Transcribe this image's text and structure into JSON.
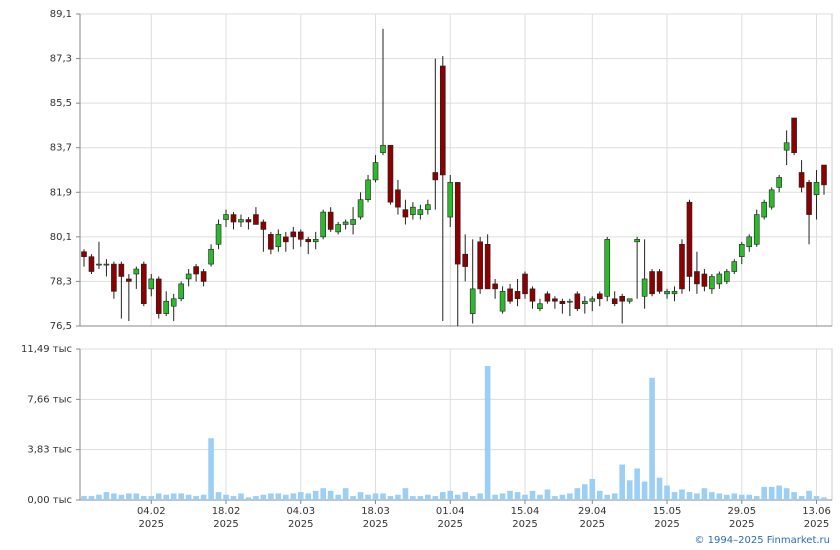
{
  "chart_data": [
    {
      "type": "candlestick",
      "up_color": "#2db82d",
      "down_color": "#8b0000",
      "ylim": [
        76.5,
        89.1
      ],
      "yticks": [
        {
          "value": 76.5,
          "label": "76,5"
        },
        {
          "value": 78.3,
          "label": "78,3"
        },
        {
          "value": 80.1,
          "label": "80,1"
        },
        {
          "value": 81.9,
          "label": "81,9"
        },
        {
          "value": 83.7,
          "label": "83,7"
        },
        {
          "value": 85.5,
          "label": "85,5"
        },
        {
          "value": 87.3,
          "label": "87,3"
        },
        {
          "value": 89.1,
          "label": "89,1"
        }
      ],
      "open": [
        79.5,
        79.3,
        79.0,
        79.0,
        79.0,
        79.0,
        78.4,
        78.6,
        79.0,
        78.0,
        78.4,
        77.0,
        77.3,
        77.6,
        78.4,
        78.9,
        78.7,
        79.0,
        79.8,
        80.8,
        81.0,
        80.7,
        80.8,
        81.0,
        80.7,
        80.2,
        79.7,
        80.1,
        80.3,
        80.3,
        80.0,
        79.9,
        80.1,
        81.1,
        80.3,
        80.6,
        80.6,
        80.9,
        81.6,
        82.4,
        83.5,
        83.8,
        82.0,
        81.2,
        81.0,
        81.0,
        81.2,
        82.7,
        87.0,
        80.9,
        82.3,
        79.4,
        77.0,
        79.9,
        79.8,
        78.2,
        77.1,
        78.0,
        77.9,
        78.6,
        78.0,
        77.2,
        77.8,
        77.6,
        77.5,
        77.5,
        77.8,
        77.4,
        77.5,
        77.8,
        77.7,
        77.6,
        77.7,
        77.5,
        79.9,
        77.7,
        78.7,
        78.7,
        77.8,
        77.8,
        79.8,
        81.5,
        78.7,
        78.6,
        78.0,
        78.2,
        78.3,
        78.7,
        79.3,
        79.7,
        79.8,
        80.9,
        81.3,
        82.1,
        83.6,
        84.9,
        82.7,
        82.3,
        81.8,
        83.0
      ],
      "high": [
        79.6,
        79.4,
        79.9,
        79.2,
        79.1,
        79.1,
        78.6,
        78.9,
        79.1,
        78.6,
        78.5,
        77.9,
        77.8,
        78.3,
        78.8,
        79.0,
        78.8,
        79.8,
        80.8,
        81.2,
        81.1,
        81.0,
        80.9,
        81.3,
        80.8,
        80.3,
        80.4,
        80.3,
        80.5,
        80.4,
        80.1,
        80.3,
        81.2,
        81.3,
        80.7,
        80.8,
        81.3,
        81.9,
        82.6,
        83.4,
        88.5,
        83.8,
        82.4,
        81.6,
        81.5,
        81.4,
        81.6,
        87.3,
        87.4,
        82.6,
        82.3,
        80.2,
        80.0,
        80.1,
        80.2,
        78.4,
        78.1,
        78.2,
        78.4,
        78.7,
        78.1,
        77.6,
        77.9,
        77.7,
        77.6,
        77.6,
        77.9,
        77.7,
        77.7,
        77.9,
        80.1,
        77.9,
        77.8,
        77.6,
        80.1,
        80.0,
        78.8,
        78.8,
        78.0,
        78.1,
        80.0,
        81.6,
        79.5,
        78.8,
        78.6,
        78.7,
        78.8,
        79.2,
        79.9,
        80.2,
        81.2,
        81.6,
        82.1,
        82.6,
        84.4,
        84.9,
        83.2,
        82.4,
        82.8,
        83.0
      ],
      "low": [
        78.9,
        78.6,
        78.8,
        78.5,
        77.6,
        76.8,
        76.7,
        78.0,
        77.3,
        77.7,
        76.8,
        76.9,
        76.7,
        77.5,
        78.1,
        78.3,
        78.1,
        78.9,
        79.6,
        80.5,
        80.4,
        80.5,
        80.4,
        80.6,
        79.5,
        79.4,
        79.5,
        79.5,
        79.6,
        79.7,
        79.4,
        79.6,
        80.0,
        80.3,
        80.2,
        80.4,
        80.2,
        80.8,
        81.5,
        82.3,
        83.4,
        81.4,
        81.0,
        80.6,
        80.8,
        80.8,
        81.0,
        81.2,
        76.7,
        80.5,
        76.5,
        78.3,
        76.6,
        77.8,
        78.0,
        77.6,
        77.0,
        77.4,
        77.3,
        77.6,
        77.2,
        77.1,
        77.4,
        77.2,
        77.0,
        76.9,
        77.1,
        77.0,
        77.1,
        77.3,
        77.5,
        77.3,
        76.6,
        77.4,
        77.6,
        77.2,
        77.7,
        77.8,
        77.6,
        77.5,
        77.8,
        77.9,
        77.8,
        77.9,
        77.8,
        78.0,
        78.2,
        78.6,
        79.0,
        79.5,
        79.7,
        80.8,
        81.2,
        81.9,
        83.0,
        83.4,
        81.9,
        79.8,
        80.8,
        81.8
      ],
      "close": [
        79.3,
        78.7,
        79.0,
        79.0,
        77.9,
        78.5,
        78.3,
        78.8,
        77.4,
        78.4,
        77.0,
        77.5,
        77.6,
        78.2,
        78.6,
        78.6,
        78.3,
        79.6,
        80.6,
        81.0,
        80.7,
        80.8,
        80.7,
        80.6,
        80.4,
        79.6,
        80.2,
        79.9,
        80.1,
        80.0,
        79.9,
        80.0,
        81.1,
        80.4,
        80.6,
        80.7,
        80.8,
        81.6,
        82.4,
        83.1,
        83.8,
        81.5,
        81.3,
        80.9,
        81.3,
        81.2,
        81.4,
        82.4,
        82.6,
        82.3,
        79.0,
        78.9,
        78.0,
        78.0,
        78.0,
        78.0,
        77.9,
        77.5,
        77.6,
        77.8,
        77.5,
        77.4,
        77.5,
        77.5,
        77.4,
        77.5,
        77.2,
        77.5,
        77.6,
        77.6,
        80.0,
        77.4,
        77.5,
        77.6,
        80.0,
        78.4,
        77.8,
        77.9,
        77.9,
        77.9,
        78.0,
        78.5,
        78.2,
        78.1,
        78.5,
        78.6,
        78.7,
        79.1,
        79.8,
        80.1,
        81.0,
        81.5,
        82.0,
        82.5,
        83.9,
        83.5,
        82.1,
        81.0,
        82.3,
        82.2
      ]
    },
    {
      "type": "bar",
      "color": "#9ccff5",
      "ylim": [
        0,
        11.49
      ],
      "yticks": [
        {
          "value": 0,
          "label": "0,00 тыс"
        },
        {
          "value": 3.83,
          "label": "3,83 тыс"
        },
        {
          "value": 7.66,
          "label": "7,66 тыс"
        },
        {
          "value": 11.49,
          "label": "11,49 тыс"
        }
      ],
      "categories": [
        null,
        null,
        null,
        null,
        null,
        null,
        null,
        null,
        null,
        "04.02\n2025",
        null,
        null,
        null,
        null,
        null,
        null,
        null,
        null,
        null,
        "18.02\n2025",
        null,
        null,
        null,
        null,
        null,
        null,
        null,
        null,
        null,
        "04.03\n2025",
        null,
        null,
        null,
        null,
        null,
        null,
        null,
        null,
        null,
        "18.03\n2025",
        null,
        null,
        null,
        null,
        null,
        null,
        null,
        null,
        null,
        "01.04\n2025",
        null,
        null,
        null,
        null,
        null,
        null,
        null,
        null,
        null,
        "15.04\n2025",
        null,
        null,
        null,
        null,
        null,
        null,
        null,
        null,
        "29.04\n2025",
        null,
        null,
        null,
        null,
        null,
        null,
        null,
        null,
        null,
        "15.05\n2025",
        null,
        null,
        null,
        null,
        null,
        null,
        null,
        null,
        null,
        "29.05\n2025",
        null,
        null,
        null,
        null,
        null,
        null,
        null,
        null,
        null,
        "13.06\n2025",
        null
      ],
      "values": [
        0.3,
        0.3,
        0.4,
        0.6,
        0.5,
        0.4,
        0.5,
        0.5,
        0.3,
        0.3,
        0.5,
        0.4,
        0.5,
        0.5,
        0.4,
        0.3,
        0.4,
        4.7,
        0.6,
        0.4,
        0.3,
        0.5,
        0.2,
        0.3,
        0.4,
        0.5,
        0.5,
        0.4,
        0.5,
        0.6,
        0.5,
        0.7,
        0.9,
        0.7,
        0.4,
        0.9,
        0.3,
        0.6,
        0.4,
        0.5,
        0.5,
        0.3,
        0.4,
        0.9,
        0.3,
        0.3,
        0.4,
        0.3,
        0.6,
        0.7,
        0.4,
        0.6,
        0.3,
        0.5,
        10.2,
        0.4,
        0.5,
        0.7,
        0.6,
        0.4,
        0.7,
        0.4,
        0.8,
        0.3,
        0.4,
        0.5,
        0.9,
        1.2,
        1.6,
        0.7,
        0.4,
        0.5,
        2.7,
        1.5,
        2.4,
        1.4,
        9.3,
        1.7,
        1.1,
        0.6,
        0.8,
        0.6,
        0.5,
        0.9,
        0.6,
        0.5,
        0.4,
        0.5,
        0.4,
        0.4,
        0.3,
        1.0,
        1.0,
        1.1,
        0.9,
        0.6,
        0.3,
        0.7,
        0.3,
        0.2
      ]
    }
  ],
  "footer": "© 1994–2025 Finmarket.ru"
}
